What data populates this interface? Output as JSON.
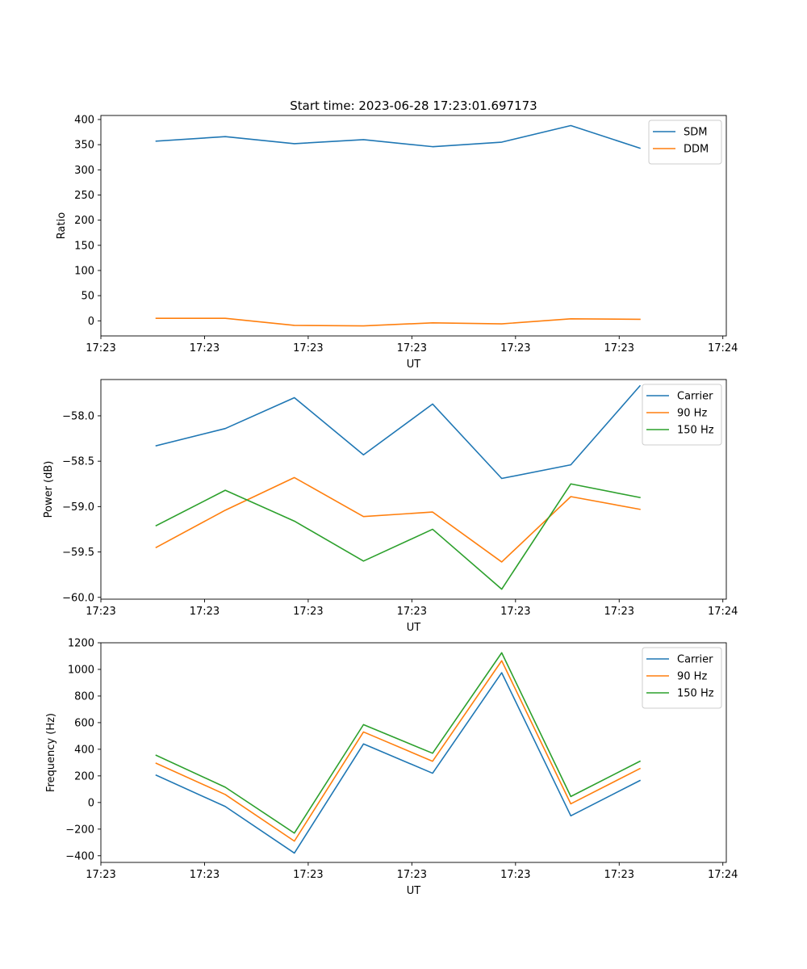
{
  "figure": {
    "title": "Start time: 2023-06-28 17:23:01.697173"
  },
  "colors": {
    "blue": "#1f77b4",
    "orange": "#ff7f0e",
    "green": "#2ca02c",
    "axes": "#000000",
    "background": "#ffffff"
  },
  "chart_data": [
    {
      "type": "line",
      "title": "Start time: 2023-06-28 17:23:01.697173",
      "xlabel": "UT",
      "ylabel": "Ratio",
      "x": [
        1,
        2,
        3,
        4,
        5,
        6,
        7,
        8
      ],
      "xlim": [
        0.2,
        9.25
      ],
      "xticks": [
        0.2,
        1.7,
        3.2,
        4.7,
        6.2,
        7.7,
        9.2
      ],
      "xtick_labels": [
        "17:23",
        "17:23",
        "17:23",
        "17:23",
        "17:23",
        "17:23",
        "17:24"
      ],
      "ylim": [
        -30,
        408
      ],
      "yticks": [
        0,
        50,
        100,
        150,
        200,
        250,
        300,
        350,
        400
      ],
      "ytick_labels": [
        "0",
        "50",
        "100",
        "150",
        "200",
        "250",
        "300",
        "350",
        "400"
      ],
      "legend": "top-right",
      "grid": false,
      "series": [
        {
          "name": "SDM",
          "color": "#1f77b4",
          "values": [
            357,
            366,
            352,
            360,
            346,
            355,
            388,
            343
          ]
        },
        {
          "name": "DDM",
          "color": "#ff7f0e",
          "values": [
            5,
            5,
            -9,
            -10,
            -4,
            -6,
            4,
            3
          ]
        }
      ]
    },
    {
      "type": "line",
      "xlabel": "UT",
      "ylabel": "Power (dB)",
      "x": [
        1,
        2,
        3,
        4,
        5,
        6,
        7,
        8
      ],
      "xlim": [
        0.2,
        9.25
      ],
      "xticks": [
        0.2,
        1.7,
        3.2,
        4.7,
        6.2,
        7.7,
        9.2
      ],
      "xtick_labels": [
        "17:23",
        "17:23",
        "17:23",
        "17:23",
        "17:23",
        "17:23",
        "17:24"
      ],
      "ylim": [
        -60.02,
        -57.6
      ],
      "yticks": [
        -60.0,
        -59.5,
        -59.0,
        -58.5,
        -58.0
      ],
      "ytick_labels": [
        "−60.0",
        "−59.5",
        "−59.0",
        "−58.5",
        "−58.0"
      ],
      "legend": "top-right",
      "grid": false,
      "series": [
        {
          "name": "Carrier",
          "color": "#1f77b4",
          "values": [
            -58.33,
            -58.14,
            -57.8,
            -58.43,
            -57.87,
            -58.69,
            -58.54,
            -57.67
          ]
        },
        {
          "name": "90 Hz",
          "color": "#ff7f0e",
          "values": [
            -59.45,
            -59.04,
            -58.68,
            -59.11,
            -59.06,
            -59.61,
            -58.89,
            -59.03
          ]
        },
        {
          "name": "150 Hz",
          "color": "#2ca02c",
          "values": [
            -59.21,
            -58.82,
            -59.16,
            -59.6,
            -59.25,
            -59.91,
            -58.75,
            -58.9
          ]
        }
      ]
    },
    {
      "type": "line",
      "xlabel": "UT",
      "ylabel": "Frequency (Hz)",
      "x": [
        1,
        2,
        3,
        4,
        5,
        6,
        7,
        8
      ],
      "xlim": [
        0.2,
        9.25
      ],
      "xticks": [
        0.2,
        1.7,
        3.2,
        4.7,
        6.2,
        7.7,
        9.2
      ],
      "xtick_labels": [
        "17:23",
        "17:23",
        "17:23",
        "17:23",
        "17:23",
        "17:23",
        "17:24"
      ],
      "ylim": [
        -450,
        1200
      ],
      "yticks": [
        -400,
        -200,
        0,
        200,
        400,
        600,
        800,
        1000,
        1200
      ],
      "ytick_labels": [
        "−400",
        "−200",
        "0",
        "200",
        "400",
        "600",
        "800",
        "1000",
        "1200"
      ],
      "legend": "top-right",
      "grid": false,
      "series": [
        {
          "name": "Carrier",
          "color": "#1f77b4",
          "values": [
            205,
            -30,
            -380,
            440,
            220,
            975,
            -100,
            165
          ]
        },
        {
          "name": "90 Hz",
          "color": "#ff7f0e",
          "values": [
            295,
            60,
            -290,
            530,
            310,
            1065,
            -10,
            255
          ]
        },
        {
          "name": "150 Hz",
          "color": "#2ca02c",
          "values": [
            355,
            115,
            -230,
            585,
            370,
            1125,
            45,
            310
          ]
        }
      ]
    }
  ]
}
